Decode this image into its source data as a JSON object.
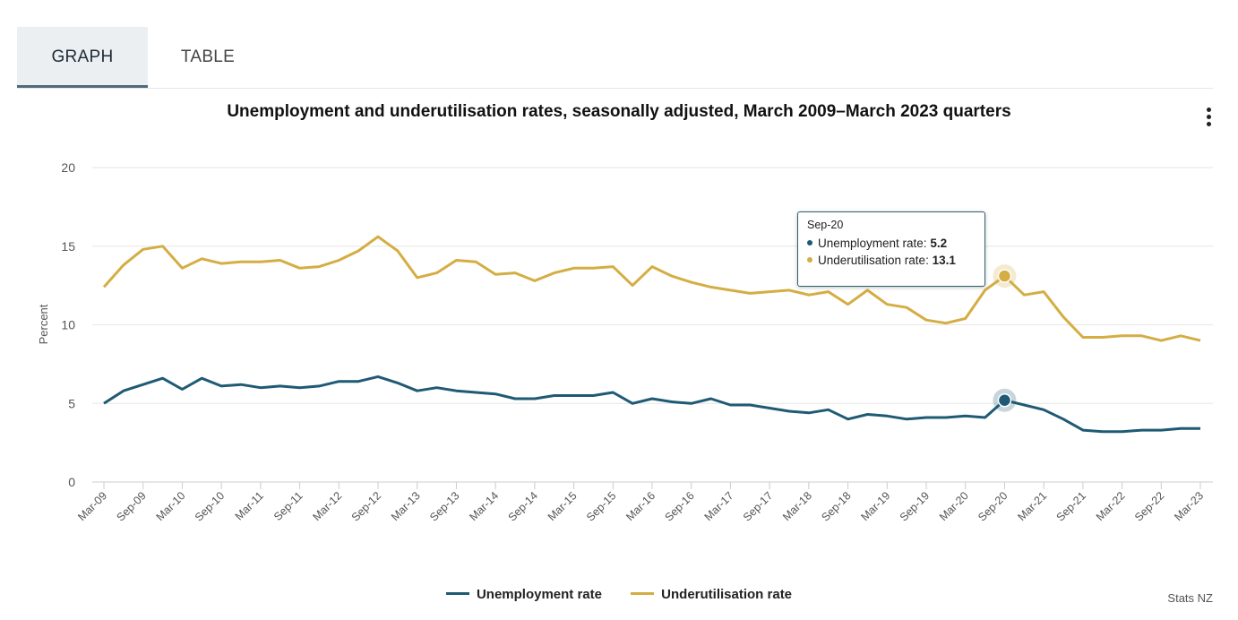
{
  "tabs": [
    {
      "label": "GRAPH",
      "active": true
    },
    {
      "label": "TABLE",
      "active": false
    }
  ],
  "colors": {
    "unemployment": "#1f5a75",
    "underutilisation": "#d4ad43",
    "grid": "#e6e6e6",
    "axis": "#cccccc"
  },
  "chart_data": {
    "type": "line",
    "title": "Unemployment and underutilisation rates, seasonally adjusted, March 2009–March 2023 quarters",
    "ylabel": "Percent",
    "xlabel": "",
    "ylim": [
      0,
      20
    ],
    "yticks": [
      0,
      5,
      10,
      15,
      20
    ],
    "grid": "horizontal",
    "legend_position": "bottom",
    "x_tick_labels": [
      "Mar-09",
      "Sep-09",
      "Mar-10",
      "Sep-10",
      "Mar-11",
      "Sep-11",
      "Mar-12",
      "Sep-12",
      "Mar-13",
      "Sep-13",
      "Mar-14",
      "Sep-14",
      "Mar-15",
      "Sep-15",
      "Mar-16",
      "Sep-16",
      "Mar-17",
      "Sep-17",
      "Mar-18",
      "Sep-18",
      "Mar-19",
      "Sep-19",
      "Mar-20",
      "Sep-20",
      "Mar-21",
      "Sep-21",
      "Mar-22",
      "Sep-22",
      "Mar-23"
    ],
    "x": [
      "Mar-09",
      "Jun-09",
      "Sep-09",
      "Dec-09",
      "Mar-10",
      "Jun-10",
      "Sep-10",
      "Dec-10",
      "Mar-11",
      "Jun-11",
      "Sep-11",
      "Dec-11",
      "Mar-12",
      "Jun-12",
      "Sep-12",
      "Dec-12",
      "Mar-13",
      "Jun-13",
      "Sep-13",
      "Dec-13",
      "Mar-14",
      "Jun-14",
      "Sep-14",
      "Dec-14",
      "Mar-15",
      "Jun-15",
      "Sep-15",
      "Dec-15",
      "Mar-16",
      "Jun-16",
      "Sep-16",
      "Dec-16",
      "Mar-17",
      "Jun-17",
      "Sep-17",
      "Dec-17",
      "Mar-18",
      "Jun-18",
      "Sep-18",
      "Dec-18",
      "Mar-19",
      "Jun-19",
      "Sep-19",
      "Dec-19",
      "Mar-20",
      "Jun-20",
      "Sep-20",
      "Dec-20",
      "Mar-21",
      "Jun-21",
      "Sep-21",
      "Dec-21",
      "Mar-22",
      "Jun-22",
      "Sep-22",
      "Dec-22",
      "Mar-23"
    ],
    "series": [
      {
        "name": "Unemployment rate",
        "color": "#1f5a75",
        "values": [
          5.0,
          5.8,
          6.2,
          6.6,
          5.9,
          6.6,
          6.1,
          6.2,
          6.0,
          6.1,
          6.0,
          6.1,
          6.4,
          6.4,
          6.7,
          6.3,
          5.8,
          6.0,
          5.8,
          5.7,
          5.6,
          5.3,
          5.3,
          5.5,
          5.5,
          5.5,
          5.7,
          5.0,
          5.3,
          5.1,
          5.0,
          5.3,
          4.9,
          4.9,
          4.7,
          4.5,
          4.4,
          4.6,
          4.0,
          4.3,
          4.2,
          4.0,
          4.1,
          4.1,
          4.2,
          4.1,
          5.2,
          4.9,
          4.6,
          4.0,
          3.3,
          3.2,
          3.2,
          3.3,
          3.3,
          3.4,
          3.4
        ]
      },
      {
        "name": "Underutilisation rate",
        "color": "#d4ad43",
        "values": [
          12.4,
          13.8,
          14.8,
          15.0,
          13.6,
          14.2,
          13.9,
          14.0,
          14.0,
          14.1,
          13.6,
          13.7,
          14.1,
          14.7,
          15.6,
          14.7,
          13.0,
          13.3,
          14.1,
          14.0,
          13.2,
          13.3,
          12.8,
          13.3,
          13.6,
          13.6,
          13.7,
          12.5,
          13.7,
          13.1,
          12.7,
          12.4,
          12.2,
          12.0,
          12.1,
          12.2,
          11.9,
          12.1,
          11.3,
          12.2,
          11.3,
          11.1,
          10.3,
          10.1,
          10.4,
          12.2,
          13.1,
          11.9,
          12.1,
          10.5,
          9.2,
          9.2,
          9.3,
          9.3,
          9.0,
          9.3,
          9.0
        ]
      }
    ]
  },
  "tooltip": {
    "period": "Sep-20",
    "rows": [
      {
        "label": "Unemployment rate: ",
        "value": "5.2"
      },
      {
        "label": "Underutilisation rate: ",
        "value": "13.1"
      }
    ]
  },
  "legend": [
    "Unemployment rate",
    "Underutilisation rate"
  ],
  "credit": "Stats NZ"
}
